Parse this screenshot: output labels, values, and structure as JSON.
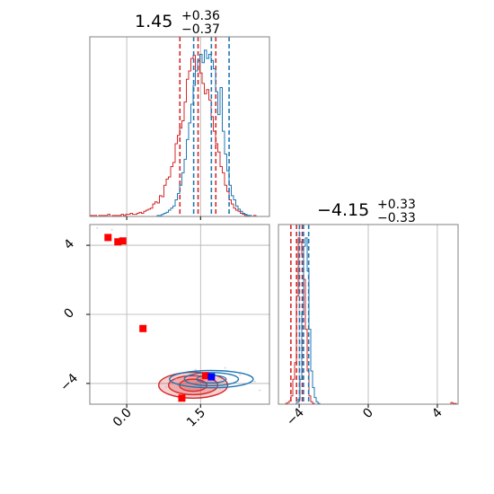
{
  "colors": {
    "series_a": "#1f77b4",
    "series_b": "#d62728",
    "marker_red": "#ff0000",
    "marker_blue": "#0000ff",
    "grid": "#b0b0b0",
    "frame": "#808080"
  },
  "chart_data": [
    {
      "type": "histogram",
      "panel": "top-left",
      "title": {
        "value": "1.45",
        "plus": "+0.36",
        "minus": "−0.37"
      },
      "xlim": [
        -0.75,
        2.9
      ],
      "grid": true,
      "series": [
        {
          "color": "series_b",
          "bin_edges": [
            -0.75,
            2.9
          ],
          "counts": [
            1,
            1,
            1,
            0,
            1,
            1,
            1,
            1,
            2,
            0,
            1,
            1,
            1,
            1,
            2,
            1,
            2,
            2,
            3,
            2,
            2,
            3,
            4,
            3,
            5,
            6,
            7,
            8,
            12,
            14,
            13,
            20,
            19,
            30,
            36,
            38,
            48,
            52,
            70,
            78,
            85,
            92,
            110,
            132,
            140,
            152,
            155,
            140,
            150,
            138,
            128,
            118,
            122,
            112,
            96,
            82,
            70,
            62,
            48,
            42,
            30,
            24,
            16,
            12,
            8,
            6,
            5,
            3,
            2,
            1,
            1,
            0,
            0,
            1,
            0,
            0,
            0,
            0,
            0,
            0
          ],
          "quantile_lines": [
            1.08,
            1.45,
            1.81
          ]
        },
        {
          "color": "series_a",
          "bin_edges": [
            -0.75,
            2.9
          ],
          "counts": [
            0,
            0,
            0,
            0,
            0,
            0,
            0,
            0,
            0,
            0,
            0,
            0,
            0,
            0,
            0,
            0,
            0,
            0,
            0,
            0,
            0,
            0,
            0,
            0,
            0,
            0,
            0,
            0,
            0,
            0,
            1,
            1,
            2,
            3,
            4,
            6,
            8,
            10,
            16,
            22,
            30,
            42,
            55,
            74,
            90,
            108,
            126,
            140,
            150,
            156,
            148,
            160,
            152,
            156,
            150,
            142,
            120,
            98,
            124,
            82,
            60,
            44,
            30,
            20,
            16,
            10,
            7,
            5,
            3,
            2,
            1,
            1,
            0,
            0,
            0,
            0,
            0,
            0,
            0,
            0
          ],
          "quantile_lines": [
            1.36,
            1.72,
            2.08
          ]
        }
      ]
    },
    {
      "type": "scatter_contour",
      "panel": "bottom-left",
      "xlim": [
        -0.75,
        2.9
      ],
      "ylim": [
        -5.2,
        5.2
      ],
      "xticks": [
        "0.0",
        "1.5"
      ],
      "xtick_values": [
        0.0,
        1.5
      ],
      "yticks": [
        "4",
        "0",
        "−4"
      ],
      "ytick_values": [
        4,
        0,
        -4
      ],
      "grid": true,
      "red_markers": [
        {
          "x": -0.38,
          "y": 4.45
        },
        {
          "x": -0.18,
          "y": 4.2
        },
        {
          "x": -0.08,
          "y": 4.25
        },
        {
          "x": 0.33,
          "y": -0.82
        },
        {
          "x": 1.12,
          "y": -4.85
        },
        {
          "x": 1.6,
          "y": -3.55
        }
      ],
      "blue_marker": {
        "x": 1.72,
        "y": -3.62
      },
      "contours": [
        {
          "series": "series_b",
          "cx": 1.35,
          "cy": -4.1,
          "rx": [
            0.28,
            0.5,
            0.7
          ],
          "ry": [
            0.35,
            0.55,
            0.75
          ]
        },
        {
          "series": "series_a",
          "cx": 1.72,
          "cy": -3.75,
          "rx": [
            0.3,
            0.55,
            0.85
          ],
          "ry": [
            0.22,
            0.38,
            0.5
          ]
        }
      ]
    },
    {
      "type": "histogram",
      "panel": "bottom-right",
      "title": {
        "value": "−4.15",
        "plus": "+0.33",
        "minus": "−0.33"
      },
      "xlim": [
        -5.2,
        5.2
      ],
      "xticks": [
        "−4",
        "0",
        "4"
      ],
      "xtick_values": [
        -4,
        0,
        4
      ],
      "grid": true,
      "series": [
        {
          "color": "series_b",
          "bin_edges": [
            -5.2,
            5.2
          ],
          "counts": [
            0,
            0,
            0,
            0,
            1,
            2,
            4,
            10,
            30,
            50,
            130,
            200,
            195,
            180,
            150,
            90,
            40,
            10,
            3,
            1,
            0,
            0,
            0,
            0,
            0,
            0,
            0,
            0,
            0,
            0,
            0,
            0,
            0,
            0,
            0,
            0,
            0,
            0,
            0,
            0,
            0,
            0,
            0,
            0,
            0,
            0,
            0,
            0,
            0,
            0,
            0,
            0,
            0,
            0,
            0,
            0,
            0,
            0,
            0,
            0,
            0,
            0,
            0,
            0,
            0,
            0,
            0,
            0,
            0,
            0,
            0,
            0,
            0,
            0,
            0,
            0,
            0,
            0,
            0,
            0,
            0,
            0,
            0,
            0,
            0,
            0,
            0,
            0,
            0,
            0,
            0,
            0,
            0,
            0,
            0,
            0,
            2,
            1,
            1,
            0
          ],
          "quantile_lines": [
            -4.48,
            -4.15,
            -3.82
          ]
        },
        {
          "color": "series_a",
          "bin_edges": [
            -5.2,
            5.2
          ],
          "counts": [
            0,
            0,
            0,
            0,
            0,
            0,
            0,
            0,
            0,
            0,
            2,
            6,
            30,
            110,
            190,
            200,
            160,
            90,
            40,
            20,
            8,
            3,
            1,
            0,
            0,
            0,
            0,
            0,
            0,
            0,
            0,
            0,
            0,
            0,
            0,
            0,
            0,
            0,
            0,
            0,
            0,
            0,
            0,
            0,
            0,
            0,
            0,
            0,
            0,
            0,
            0,
            0,
            0,
            0,
            0,
            0,
            0,
            0,
            0,
            0,
            0,
            0,
            0,
            0,
            0,
            0,
            0,
            0,
            0,
            0,
            0,
            0,
            0,
            0,
            0,
            0,
            0,
            0,
            0,
            0,
            0,
            0,
            0,
            0,
            0,
            0,
            0,
            0,
            0,
            0,
            0,
            0,
            0,
            0,
            0,
            0,
            0,
            0,
            0,
            0
          ],
          "quantile_lines": [
            -3.98,
            -3.75,
            -3.45
          ]
        }
      ]
    }
  ]
}
